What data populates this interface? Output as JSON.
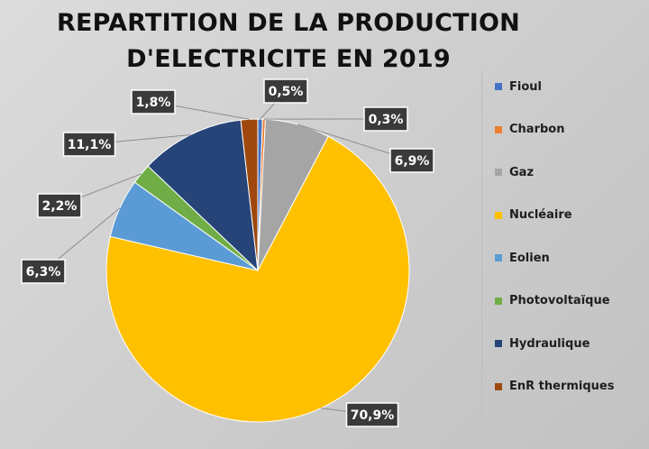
{
  "chart_data": {
    "type": "pie",
    "title_line1": "REPARTITION DE LA PRODUCTION",
    "title_line2": "D'ELECTRICITE EN 2019",
    "categories": [
      "Fioul",
      "Charbon",
      "Gaz",
      "Nucléaire",
      "Eolien",
      "Photovoltaïque",
      "Hydraulique",
      "EnR thermiques"
    ],
    "values": [
      0.5,
      0.3,
      6.9,
      70.9,
      6.3,
      2.2,
      11.1,
      1.8
    ],
    "labels": [
      "0,5%",
      "0,3%",
      "6,9%",
      "70,9%",
      "6,3%",
      "2,2%",
      "11,1%",
      "1,8%"
    ],
    "colors": [
      "#4472c4",
      "#ed7d31",
      "#a5a5a5",
      "#ffc000",
      "#5b9bd5",
      "#70ad47",
      "#264478",
      "#9e480e"
    ],
    "legend_position": "right"
  }
}
